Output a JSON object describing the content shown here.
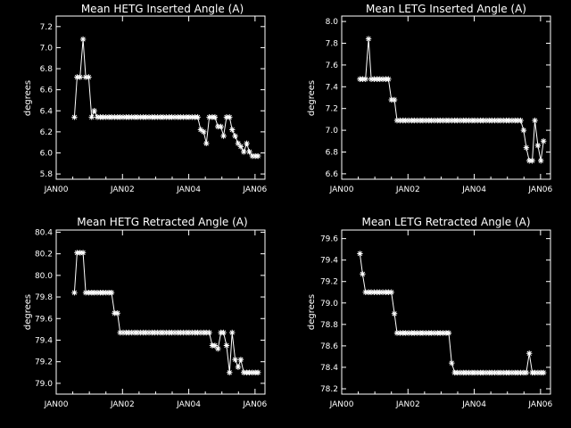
{
  "chart_data": [
    {
      "type": "line",
      "title": "Mean HETG Inserted Angle (A)",
      "ylabel": "degrees",
      "xlim": [
        2000.0,
        2006.3
      ],
      "ylim": [
        5.75,
        7.3
      ],
      "xticks": [
        {
          "value": 2000,
          "label": "JAN00"
        },
        {
          "value": 2002,
          "label": "JAN02"
        },
        {
          "value": 2004,
          "label": "JAN04"
        },
        {
          "value": 2006,
          "label": "JAN06"
        }
      ],
      "yticks": [
        {
          "value": 5.8,
          "label": "5.8"
        },
        {
          "value": 6.0,
          "label": "6.0"
        },
        {
          "value": 6.2,
          "label": "6.2"
        },
        {
          "value": 6.4,
          "label": "6.4"
        },
        {
          "value": 6.6,
          "label": "6.6"
        },
        {
          "value": 6.8,
          "label": "6.8"
        },
        {
          "value": 7.0,
          "label": "7.0"
        },
        {
          "value": 7.2,
          "label": "7.2"
        }
      ],
      "x": [
        2000.55,
        2000.63,
        2000.72,
        2000.81,
        2000.89,
        2000.98,
        2001.07,
        2001.15,
        2001.24,
        2001.33,
        2001.41,
        2001.5,
        2001.59,
        2001.67,
        2001.76,
        2001.85,
        2001.93,
        2002.02,
        2002.11,
        2002.19,
        2002.28,
        2002.37,
        2002.45,
        2002.54,
        2002.63,
        2002.71,
        2002.8,
        2002.89,
        2002.97,
        2003.06,
        2003.15,
        2003.23,
        2003.32,
        2003.41,
        2003.49,
        2003.58,
        2003.67,
        2003.75,
        2003.84,
        2003.93,
        2004.01,
        2004.1,
        2004.19,
        2004.27,
        2004.36,
        2004.45,
        2004.53,
        2004.62,
        2004.71,
        2004.79,
        2004.88,
        2004.97,
        2005.05,
        2005.14,
        2005.23,
        2005.31,
        2005.4,
        2005.49,
        2005.57,
        2005.66,
        2005.75,
        2005.83,
        2005.92,
        2006.01,
        2006.09
      ],
      "y": [
        6.34,
        6.72,
        6.72,
        7.08,
        6.72,
        6.72,
        6.34,
        6.4,
        6.34,
        6.34,
        6.34,
        6.34,
        6.34,
        6.34,
        6.34,
        6.34,
        6.34,
        6.34,
        6.34,
        6.34,
        6.34,
        6.34,
        6.34,
        6.34,
        6.34,
        6.34,
        6.34,
        6.34,
        6.34,
        6.34,
        6.34,
        6.34,
        6.34,
        6.34,
        6.34,
        6.34,
        6.34,
        6.34,
        6.34,
        6.34,
        6.34,
        6.34,
        6.34,
        6.34,
        6.22,
        6.2,
        6.09,
        6.34,
        6.34,
        6.34,
        6.25,
        6.25,
        6.16,
        6.34,
        6.34,
        6.22,
        6.16,
        6.09,
        6.06,
        6.01,
        6.09,
        6.01,
        5.97,
        5.97,
        5.97
      ]
    },
    {
      "type": "line",
      "title": "Mean LETG Inserted Angle (A)",
      "ylabel": "degrees",
      "xlim": [
        2000.0,
        2006.3
      ],
      "ylim": [
        6.55,
        8.05
      ],
      "xticks": [
        {
          "value": 2000,
          "label": "JAN00"
        },
        {
          "value": 2002,
          "label": "JAN02"
        },
        {
          "value": 2004,
          "label": "JAN04"
        },
        {
          "value": 2006,
          "label": "JAN06"
        }
      ],
      "yticks": [
        {
          "value": 6.6,
          "label": "6.6"
        },
        {
          "value": 6.8,
          "label": "6.8"
        },
        {
          "value": 7.0,
          "label": "7.0"
        },
        {
          "value": 7.2,
          "label": "7.2"
        },
        {
          "value": 7.4,
          "label": "7.4"
        },
        {
          "value": 7.6,
          "label": "7.6"
        },
        {
          "value": 7.8,
          "label": "7.8"
        },
        {
          "value": 8.0,
          "label": "8.0"
        }
      ],
      "x": [
        2000.55,
        2000.63,
        2000.72,
        2000.81,
        2000.89,
        2000.98,
        2001.07,
        2001.15,
        2001.24,
        2001.33,
        2001.41,
        2001.5,
        2001.59,
        2001.67,
        2001.76,
        2001.85,
        2001.93,
        2002.02,
        2002.11,
        2002.19,
        2002.28,
        2002.37,
        2002.45,
        2002.54,
        2002.63,
        2002.71,
        2002.8,
        2002.89,
        2002.97,
        2003.06,
        2003.15,
        2003.23,
        2003.32,
        2003.41,
        2003.49,
        2003.58,
        2003.67,
        2003.75,
        2003.84,
        2003.93,
        2004.01,
        2004.1,
        2004.19,
        2004.27,
        2004.36,
        2004.45,
        2004.53,
        2004.62,
        2004.71,
        2004.79,
        2004.88,
        2004.97,
        2005.05,
        2005.14,
        2005.23,
        2005.31,
        2005.4,
        2005.49,
        2005.57,
        2005.66,
        2005.75,
        2005.83,
        2005.92,
        2006.01,
        2006.09
      ],
      "y": [
        7.47,
        7.47,
        7.47,
        7.84,
        7.47,
        7.47,
        7.47,
        7.47,
        7.47,
        7.47,
        7.47,
        7.28,
        7.28,
        7.09,
        7.09,
        7.09,
        7.09,
        7.09,
        7.09,
        7.09,
        7.09,
        7.09,
        7.09,
        7.09,
        7.09,
        7.09,
        7.09,
        7.09,
        7.09,
        7.09,
        7.09,
        7.09,
        7.09,
        7.09,
        7.09,
        7.09,
        7.09,
        7.09,
        7.09,
        7.09,
        7.09,
        7.09,
        7.09,
        7.09,
        7.09,
        7.09,
        7.09,
        7.09,
        7.09,
        7.09,
        7.09,
        7.09,
        7.09,
        7.09,
        7.09,
        7.09,
        7.09,
        7.0,
        6.84,
        6.72,
        6.72,
        7.09,
        6.86,
        6.72,
        6.9
      ]
    },
    {
      "type": "line",
      "title": "Mean HETG Retracted Angle (A)",
      "ylabel": "degrees",
      "xlim": [
        2000.0,
        2006.3
      ],
      "ylim": [
        78.9,
        80.42
      ],
      "xticks": [
        {
          "value": 2000,
          "label": "JAN00"
        },
        {
          "value": 2002,
          "label": "JAN02"
        },
        {
          "value": 2004,
          "label": "JAN04"
        },
        {
          "value": 2006,
          "label": "JAN06"
        }
      ],
      "yticks": [
        {
          "value": 79.0,
          "label": "79.0"
        },
        {
          "value": 79.2,
          "label": "79.2"
        },
        {
          "value": 79.4,
          "label": "79.4"
        },
        {
          "value": 79.6,
          "label": "79.6"
        },
        {
          "value": 79.8,
          "label": "79.8"
        },
        {
          "value": 80.0,
          "label": "80.0"
        },
        {
          "value": 80.2,
          "label": "80.2"
        },
        {
          "value": 80.4,
          "label": "80.4"
        }
      ],
      "x": [
        2000.55,
        2000.63,
        2000.72,
        2000.81,
        2000.89,
        2000.98,
        2001.07,
        2001.15,
        2001.24,
        2001.33,
        2001.41,
        2001.5,
        2001.59,
        2001.67,
        2001.76,
        2001.85,
        2001.93,
        2002.02,
        2002.11,
        2002.19,
        2002.28,
        2002.37,
        2002.45,
        2002.54,
        2002.63,
        2002.71,
        2002.8,
        2002.89,
        2002.97,
        2003.06,
        2003.15,
        2003.23,
        2003.32,
        2003.41,
        2003.49,
        2003.58,
        2003.67,
        2003.75,
        2003.84,
        2003.93,
        2004.01,
        2004.1,
        2004.19,
        2004.27,
        2004.36,
        2004.45,
        2004.53,
        2004.62,
        2004.71,
        2004.79,
        2004.88,
        2004.97,
        2005.05,
        2005.14,
        2005.23,
        2005.31,
        2005.4,
        2005.49,
        2005.57,
        2005.66,
        2005.75,
        2005.83,
        2005.92,
        2006.01,
        2006.09
      ],
      "y": [
        79.84,
        80.21,
        80.21,
        80.21,
        79.84,
        79.84,
        79.84,
        79.84,
        79.84,
        79.84,
        79.84,
        79.84,
        79.84,
        79.84,
        79.65,
        79.65,
        79.47,
        79.47,
        79.47,
        79.47,
        79.47,
        79.47,
        79.47,
        79.47,
        79.47,
        79.47,
        79.47,
        79.47,
        79.47,
        79.47,
        79.47,
        79.47,
        79.47,
        79.47,
        79.47,
        79.47,
        79.47,
        79.47,
        79.47,
        79.47,
        79.47,
        79.47,
        79.47,
        79.47,
        79.47,
        79.47,
        79.47,
        79.47,
        79.35,
        79.35,
        79.32,
        79.47,
        79.47,
        79.35,
        79.1,
        79.47,
        79.22,
        79.15,
        79.22,
        79.1,
        79.1,
        79.1,
        79.1,
        79.1,
        79.1
      ]
    },
    {
      "type": "line",
      "title": "Mean LETG Retracted Angle (A)",
      "ylabel": "degrees",
      "xlim": [
        2000.0,
        2006.3
      ],
      "ylim": [
        78.15,
        79.68
      ],
      "xticks": [
        {
          "value": 2000,
          "label": "JAN00"
        },
        {
          "value": 2002,
          "label": "JAN02"
        },
        {
          "value": 2004,
          "label": "JAN04"
        },
        {
          "value": 2006,
          "label": "JAN06"
        }
      ],
      "yticks": [
        {
          "value": 78.2,
          "label": "78.2"
        },
        {
          "value": 78.4,
          "label": "78.4"
        },
        {
          "value": 78.6,
          "label": "78.6"
        },
        {
          "value": 78.8,
          "label": "78.8"
        },
        {
          "value": 79.0,
          "label": "79.0"
        },
        {
          "value": 79.2,
          "label": "79.2"
        },
        {
          "value": 79.4,
          "label": "79.4"
        },
        {
          "value": 79.6,
          "label": "79.6"
        }
      ],
      "x": [
        2000.55,
        2000.63,
        2000.72,
        2000.81,
        2000.89,
        2000.98,
        2001.07,
        2001.15,
        2001.24,
        2001.33,
        2001.41,
        2001.5,
        2001.59,
        2001.67,
        2001.76,
        2001.85,
        2001.93,
        2002.02,
        2002.11,
        2002.19,
        2002.28,
        2002.37,
        2002.45,
        2002.54,
        2002.63,
        2002.71,
        2002.8,
        2002.89,
        2002.97,
        2003.06,
        2003.15,
        2003.23,
        2003.32,
        2003.41,
        2003.49,
        2003.58,
        2003.67,
        2003.75,
        2003.84,
        2003.93,
        2004.01,
        2004.1,
        2004.19,
        2004.27,
        2004.36,
        2004.45,
        2004.53,
        2004.62,
        2004.71,
        2004.79,
        2004.88,
        2004.97,
        2005.05,
        2005.14,
        2005.23,
        2005.31,
        2005.4,
        2005.49,
        2005.57,
        2005.66,
        2005.75,
        2005.83,
        2005.92,
        2006.01,
        2006.09
      ],
      "y": [
        79.46,
        79.27,
        79.1,
        79.1,
        79.1,
        79.1,
        79.1,
        79.1,
        79.1,
        79.1,
        79.1,
        79.1,
        78.9,
        78.72,
        78.72,
        78.72,
        78.72,
        78.72,
        78.72,
        78.72,
        78.72,
        78.72,
        78.72,
        78.72,
        78.72,
        78.72,
        78.72,
        78.72,
        78.72,
        78.72,
        78.72,
        78.72,
        78.44,
        78.35,
        78.35,
        78.35,
        78.35,
        78.35,
        78.35,
        78.35,
        78.35,
        78.35,
        78.35,
        78.35,
        78.35,
        78.35,
        78.35,
        78.35,
        78.35,
        78.35,
        78.35,
        78.35,
        78.35,
        78.35,
        78.35,
        78.35,
        78.35,
        78.35,
        78.35,
        78.53,
        78.35,
        78.35,
        78.35,
        78.35,
        78.35
      ]
    }
  ]
}
